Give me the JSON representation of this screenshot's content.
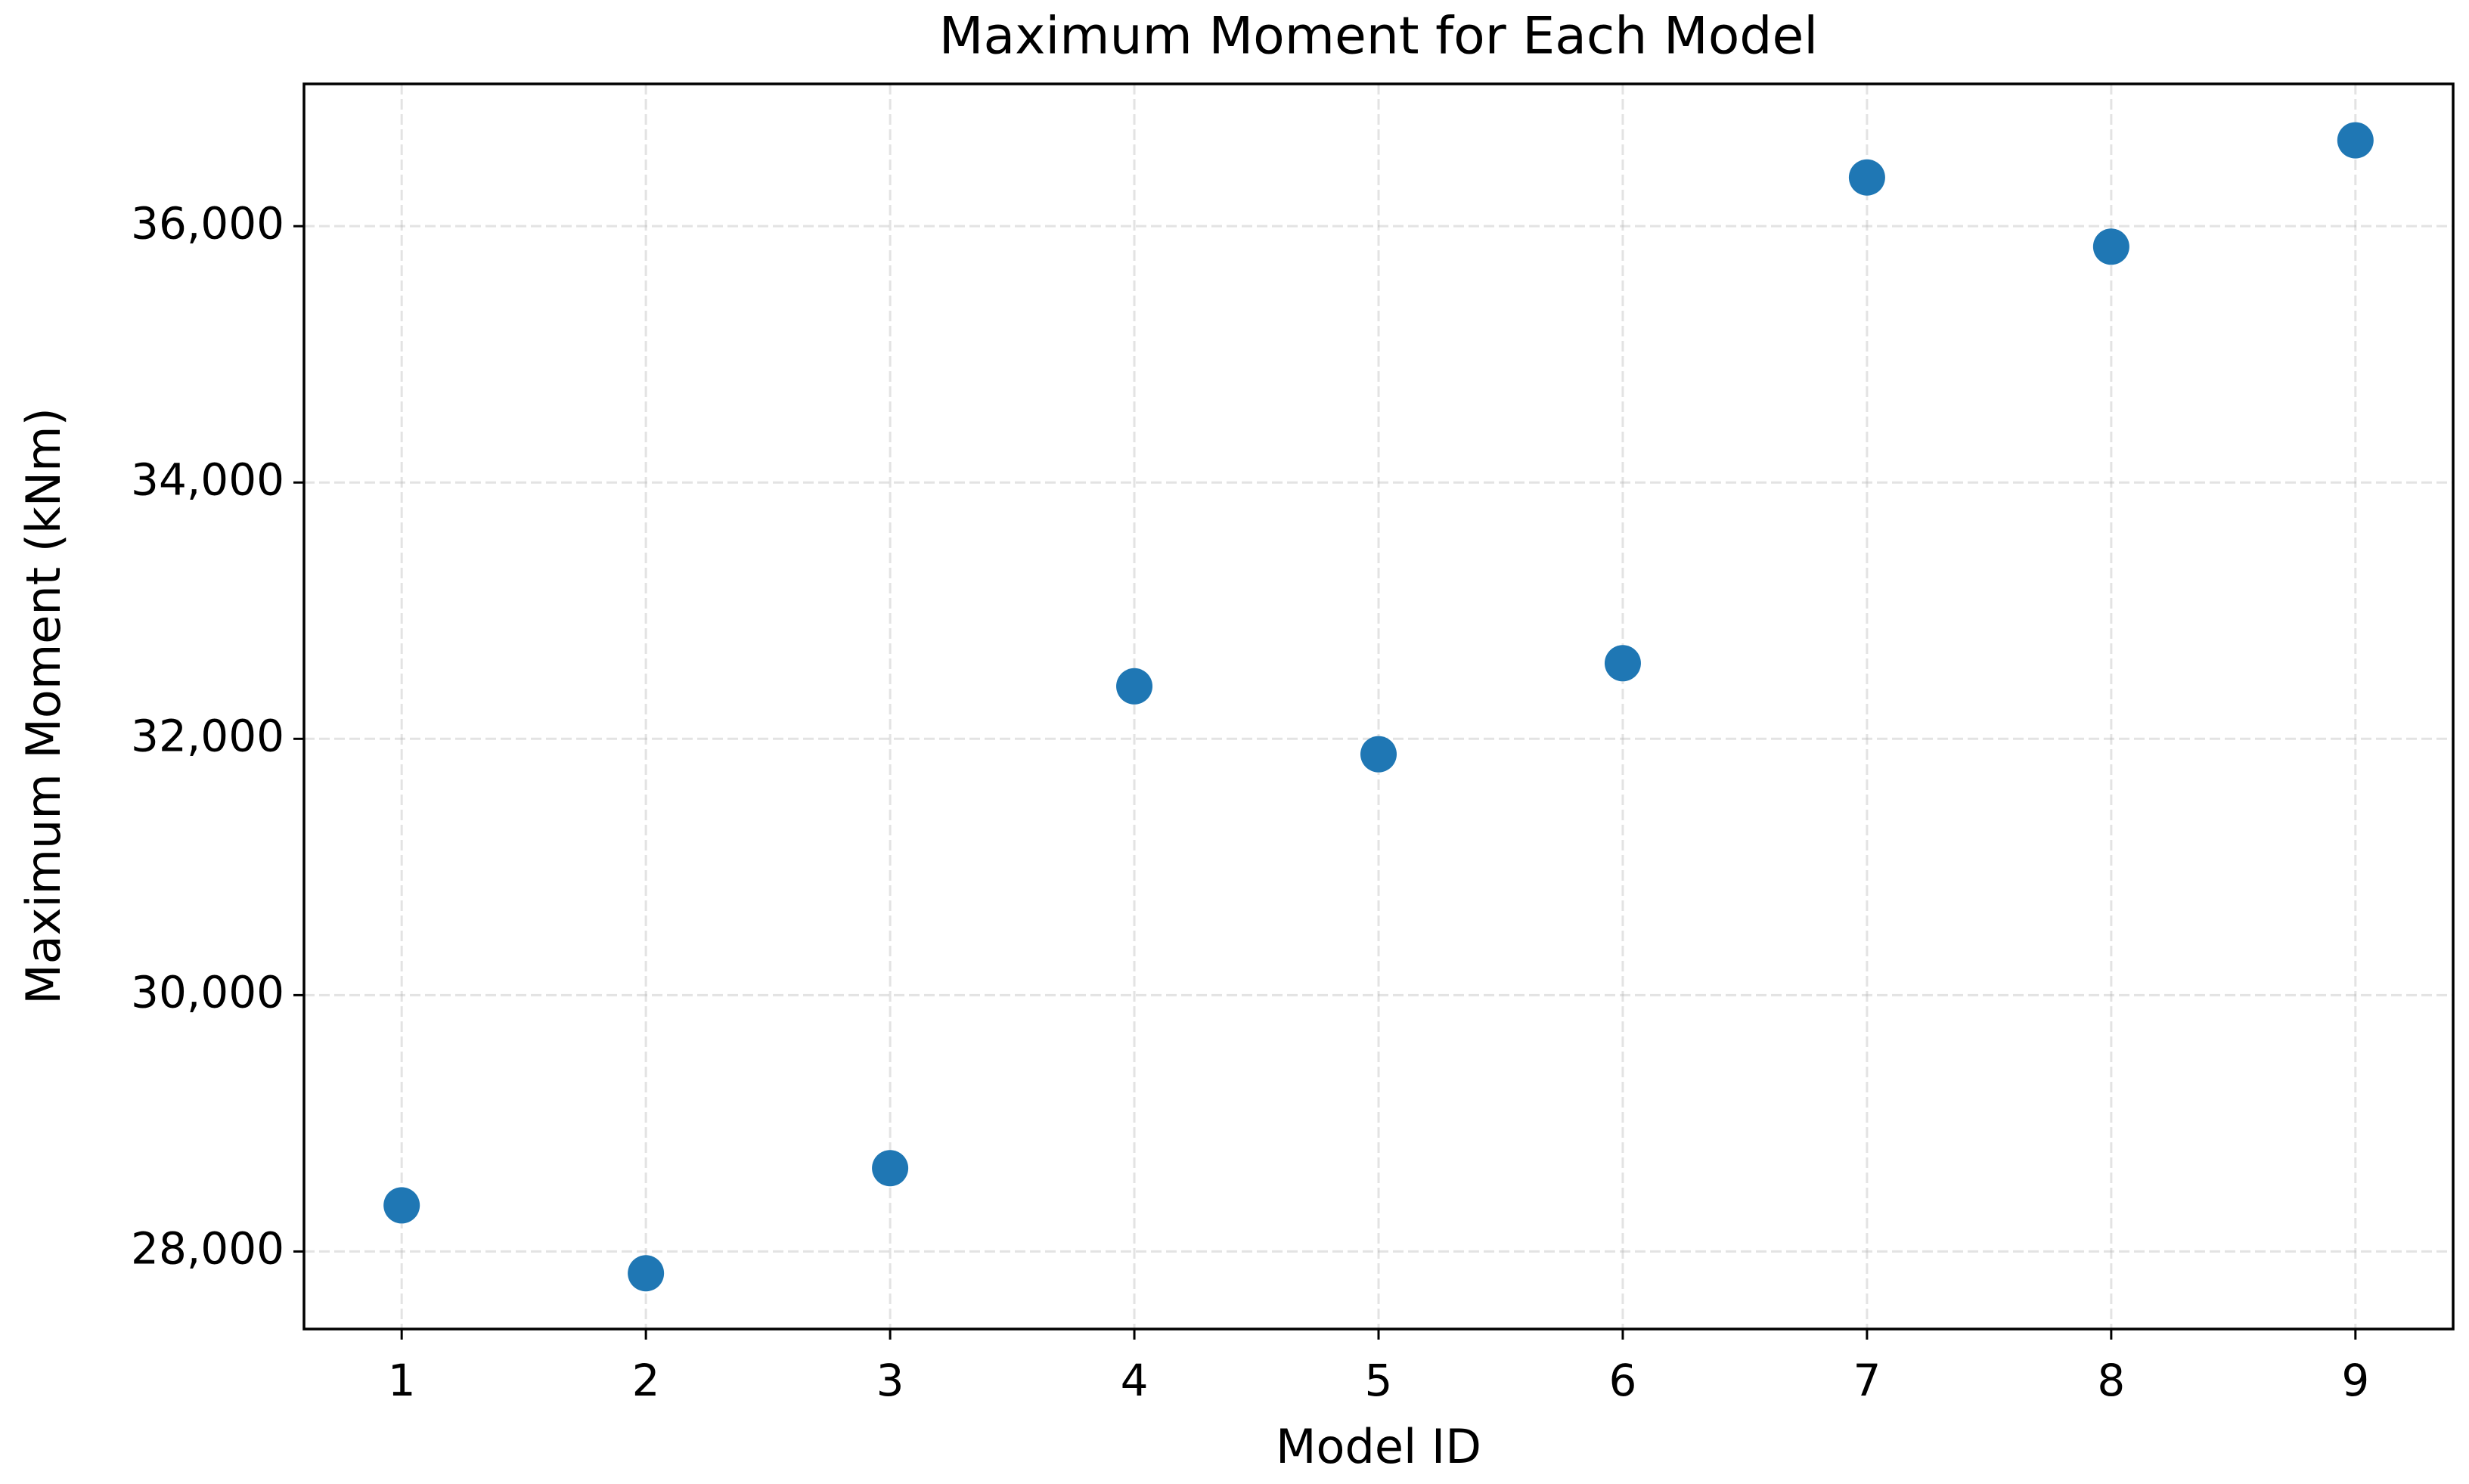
{
  "chart_data": {
    "type": "scatter",
    "title": "Maximum Moment for Each Model",
    "x_label": "Model ID",
    "y_label": "Maximum Moment (kNm)",
    "x": [
      1,
      2,
      3,
      4,
      5,
      6,
      7,
      8,
      9
    ],
    "values": [
      28360,
      27830,
      28650,
      32410,
      31880,
      32590,
      36380,
      35840,
      36670
    ],
    "color": "#1f77b4",
    "xlim": [
      0.6,
      9.4
    ],
    "xticks": [
      1,
      2,
      3,
      4,
      5,
      6,
      7,
      8,
      9
    ],
    "ylim": [
      27395,
      37110
    ],
    "yticks": [
      {
        "value": 28000,
        "label": "28,000"
      },
      {
        "value": 30000,
        "label": "30,000"
      },
      {
        "value": 32000,
        "label": "32,000"
      },
      {
        "value": 34000,
        "label": "34,000"
      },
      {
        "value": 36000,
        "label": "36,000"
      }
    ],
    "grid": true
  }
}
